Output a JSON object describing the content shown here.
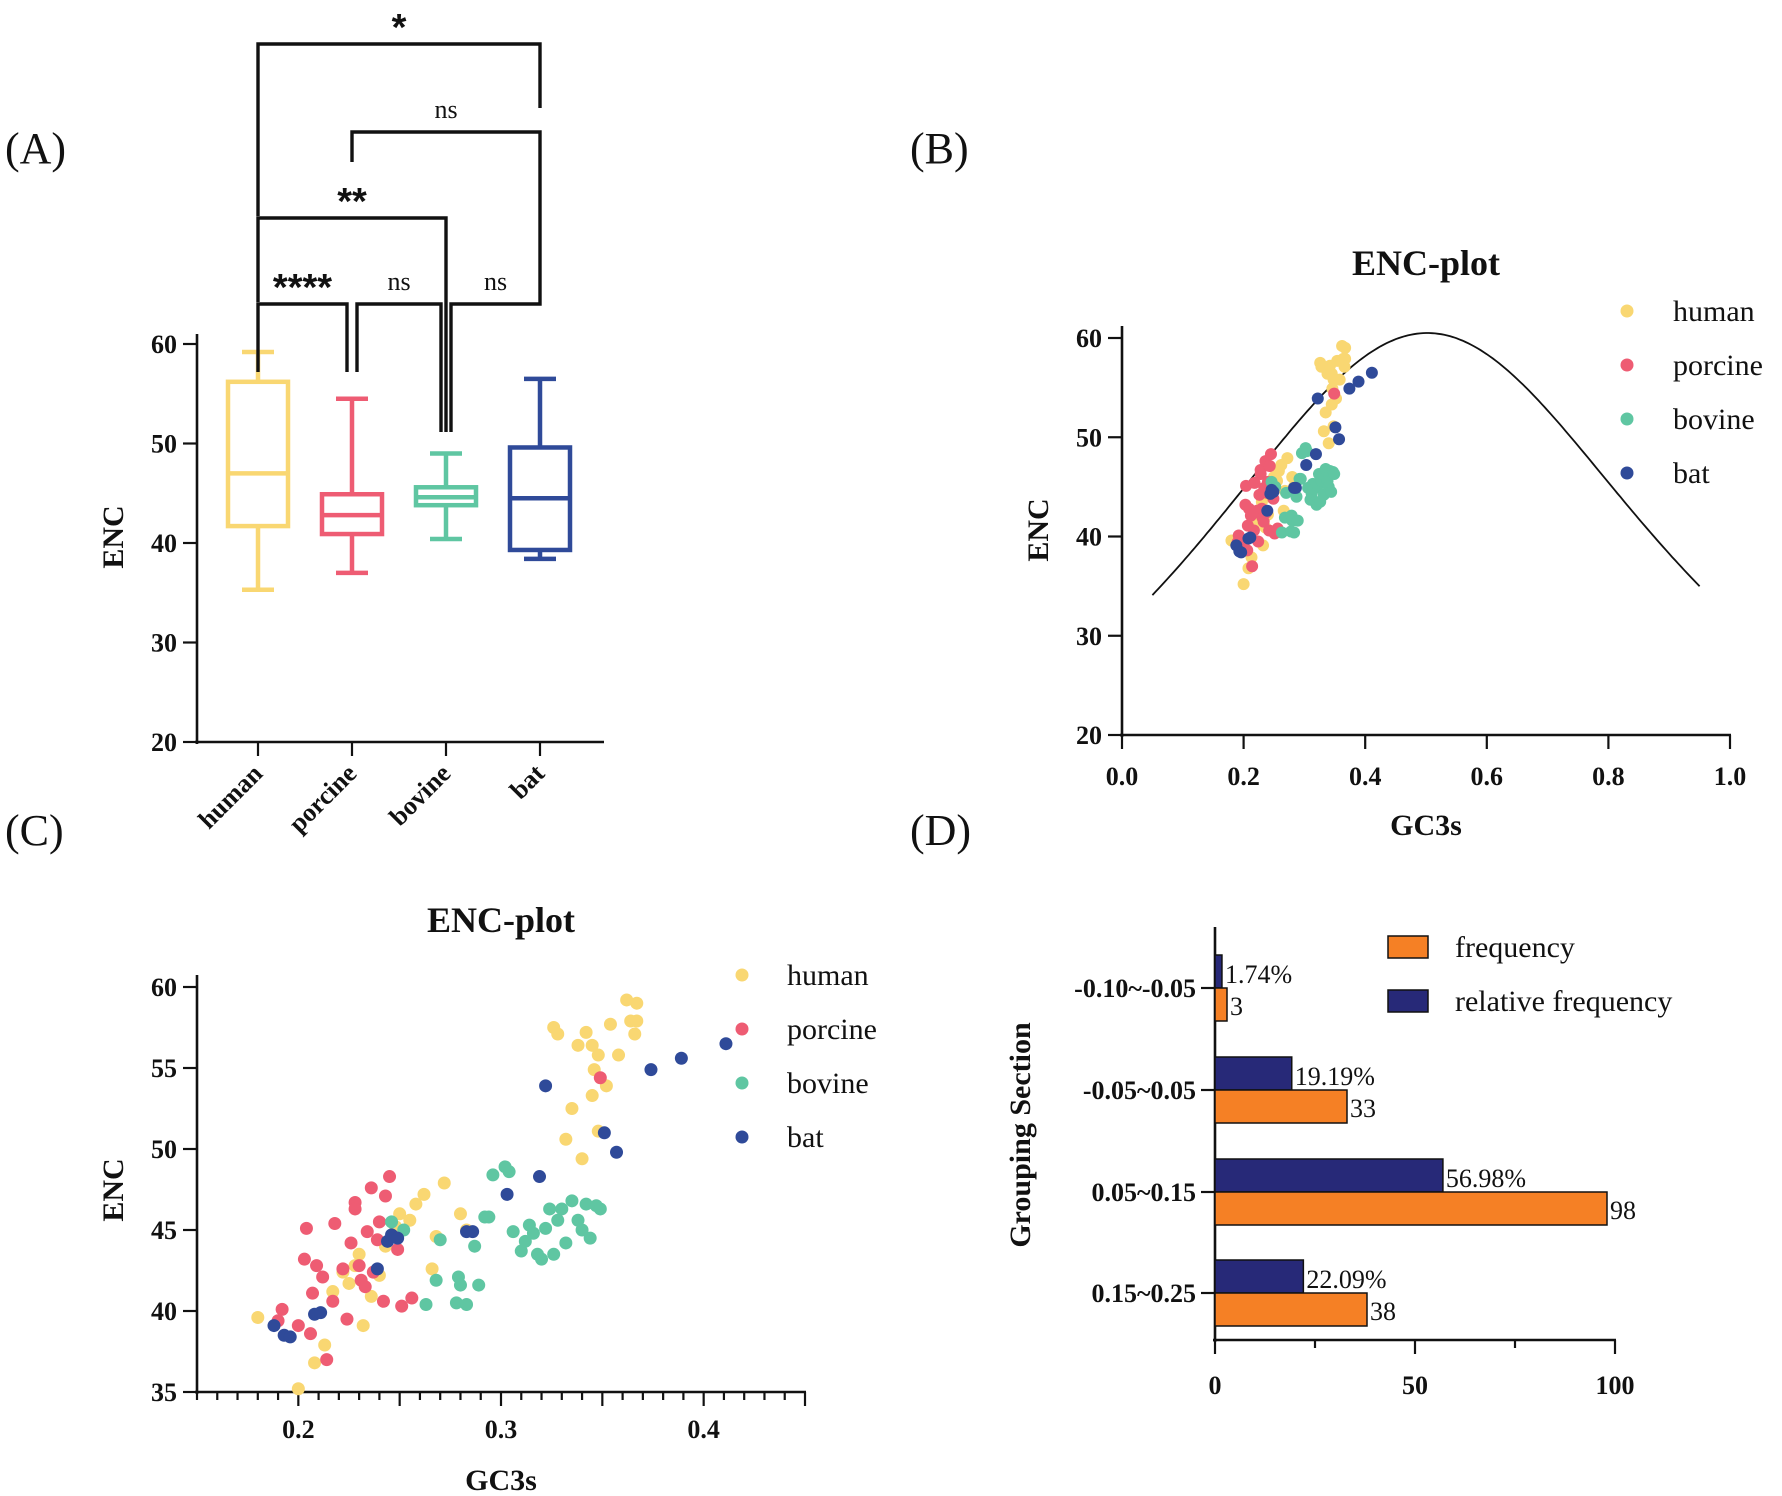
{
  "panels": {
    "A": "(A)",
    "B": "(B)",
    "C": "(C)",
    "D": "(D)"
  },
  "colors": {
    "human": "#F9D772",
    "porcine": "#EE5C73",
    "bovine": "#5FC6A2",
    "bat": "#2F4A99",
    "frequency": "#F58025",
    "relative_frequency": "#272978"
  },
  "chart_data": [
    {
      "id": "A",
      "type": "box",
      "title": "",
      "ylabel": "ENC",
      "ylim": [
        20,
        60
      ],
      "yticks": [
        "20",
        "30",
        "40",
        "50",
        "60"
      ],
      "categories": [
        "human",
        "porcine",
        "bovine",
        "bat"
      ],
      "boxes": [
        {
          "name": "human",
          "min": 35.3,
          "q1": 41.7,
          "median": 47.0,
          "q3": 56.2,
          "max": 59.2
        },
        {
          "name": "porcine",
          "min": 37.0,
          "q1": 40.9,
          "median": 42.8,
          "q3": 44.9,
          "max": 54.5
        },
        {
          "name": "bovine",
          "min": 40.4,
          "q1": 43.8,
          "median": 44.6,
          "q3": 45.6,
          "max": 49.0
        },
        {
          "name": "bat",
          "min": 38.4,
          "q1": 39.3,
          "median": 44.5,
          "q3": 49.6,
          "max": 56.5
        }
      ],
      "significance": [
        {
          "a": 0,
          "b": 1,
          "label": "****"
        },
        {
          "a": 1,
          "b": 2,
          "label": "ns"
        },
        {
          "a": 2,
          "b": 3,
          "label": "ns"
        },
        {
          "a": 0,
          "b": 2,
          "label": "**"
        },
        {
          "a": 1,
          "b": 3,
          "label": "ns"
        },
        {
          "a": 0,
          "b": 3,
          "label": "*"
        }
      ]
    },
    {
      "id": "B",
      "type": "scatter",
      "title": "ENC-plot",
      "xlabel": "GC3s",
      "ylabel": "ENC",
      "xlim": [
        0.0,
        1.0
      ],
      "ylim": [
        20,
        60
      ],
      "xticks": [
        "0.0",
        "0.2",
        "0.4",
        "0.6",
        "0.8",
        "1.0"
      ],
      "yticks": [
        "20",
        "30",
        "40",
        "50",
        "60"
      ],
      "expected_curve": "ENC = 2 + s + 29/(s^2 + (1-s)^2)",
      "legend": [
        "human",
        "porcine",
        "bovine",
        "bat"
      ]
    },
    {
      "id": "C",
      "type": "scatter",
      "title": "ENC-plot",
      "xlabel": "GC3s",
      "ylabel": "ENC",
      "xlim": [
        0.15,
        0.45
      ],
      "ylim": [
        35,
        60
      ],
      "xticks": [
        "0.2",
        "0.3",
        "0.4"
      ],
      "yticks": [
        "35",
        "40",
        "45",
        "50",
        "55",
        "60"
      ],
      "legend": [
        "human",
        "porcine",
        "bovine",
        "bat"
      ],
      "series": [
        {
          "name": "human",
          "points": [
            [
              0.18,
              39.6
            ],
            [
              0.2,
              35.2
            ],
            [
              0.208,
              36.8
            ],
            [
              0.213,
              37.9
            ],
            [
              0.217,
              41.2
            ],
            [
              0.222,
              42.4
            ],
            [
              0.225,
              41.7
            ],
            [
              0.228,
              42.8
            ],
            [
              0.23,
              43.5
            ],
            [
              0.232,
              39.1
            ],
            [
              0.236,
              40.9
            ],
            [
              0.24,
              42.2
            ],
            [
              0.243,
              44.0
            ],
            [
              0.248,
              45.2
            ],
            [
              0.25,
              46.0
            ],
            [
              0.255,
              45.6
            ],
            [
              0.258,
              46.6
            ],
            [
              0.262,
              47.2
            ],
            [
              0.266,
              42.6
            ],
            [
              0.268,
              44.6
            ],
            [
              0.272,
              47.9
            ],
            [
              0.28,
              46.0
            ],
            [
              0.283,
              45.0
            ],
            [
              0.326,
              57.5
            ],
            [
              0.328,
              57.1
            ],
            [
              0.332,
              50.6
            ],
            [
              0.335,
              52.5
            ],
            [
              0.338,
              56.4
            ],
            [
              0.34,
              49.4
            ],
            [
              0.342,
              57.2
            ],
            [
              0.345,
              56.4
            ],
            [
              0.345,
              53.3
            ],
            [
              0.346,
              54.9
            ],
            [
              0.348,
              55.8
            ],
            [
              0.348,
              51.1
            ],
            [
              0.352,
              53.9
            ],
            [
              0.354,
              57.7
            ],
            [
              0.358,
              55.8
            ],
            [
              0.362,
              59.2
            ],
            [
              0.364,
              57.9
            ],
            [
              0.366,
              57.1
            ],
            [
              0.367,
              57.9
            ],
            [
              0.367,
              59.0
            ]
          ]
        },
        {
          "name": "porcine",
          "points": [
            [
              0.19,
              39.4
            ],
            [
              0.192,
              40.1
            ],
            [
              0.2,
              39.1
            ],
            [
              0.203,
              43.2
            ],
            [
              0.204,
              45.1
            ],
            [
              0.206,
              38.6
            ],
            [
              0.207,
              41.1
            ],
            [
              0.209,
              42.8
            ],
            [
              0.212,
              42.1
            ],
            [
              0.214,
              37.0
            ],
            [
              0.217,
              40.6
            ],
            [
              0.218,
              45.4
            ],
            [
              0.222,
              42.6
            ],
            [
              0.224,
              39.5
            ],
            [
              0.226,
              44.2
            ],
            [
              0.228,
              46.7
            ],
            [
              0.228,
              46.3
            ],
            [
              0.23,
              42.8
            ],
            [
              0.231,
              41.9
            ],
            [
              0.233,
              41.5
            ],
            [
              0.234,
              44.9
            ],
            [
              0.236,
              47.6
            ],
            [
              0.237,
              42.4
            ],
            [
              0.239,
              44.4
            ],
            [
              0.24,
              45.5
            ],
            [
              0.242,
              40.6
            ],
            [
              0.243,
              47.1
            ],
            [
              0.245,
              48.3
            ],
            [
              0.247,
              44.6
            ],
            [
              0.249,
              43.8
            ],
            [
              0.251,
              40.3
            ],
            [
              0.256,
              40.8
            ],
            [
              0.349,
              54.4
            ]
          ]
        },
        {
          "name": "bovine",
          "points": [
            [
              0.246,
              45.5
            ],
            [
              0.252,
              45.0
            ],
            [
              0.263,
              40.4
            ],
            [
              0.268,
              41.9
            ],
            [
              0.27,
              44.4
            ],
            [
              0.278,
              40.5
            ],
            [
              0.279,
              42.1
            ],
            [
              0.28,
              41.6
            ],
            [
              0.283,
              40.4
            ],
            [
              0.287,
              44.0
            ],
            [
              0.289,
              41.6
            ],
            [
              0.292,
              45.8
            ],
            [
              0.294,
              45.8
            ],
            [
              0.296,
              48.4
            ],
            [
              0.302,
              48.9
            ],
            [
              0.304,
              48.6
            ],
            [
              0.306,
              44.9
            ],
            [
              0.31,
              43.7
            ],
            [
              0.312,
              44.3
            ],
            [
              0.314,
              45.3
            ],
            [
              0.316,
              44.8
            ],
            [
              0.318,
              43.5
            ],
            [
              0.32,
              43.2
            ],
            [
              0.322,
              45.1
            ],
            [
              0.324,
              46.3
            ],
            [
              0.326,
              43.5
            ],
            [
              0.328,
              45.6
            ],
            [
              0.33,
              46.3
            ],
            [
              0.332,
              44.2
            ],
            [
              0.335,
              46.8
            ],
            [
              0.338,
              45.6
            ],
            [
              0.34,
              45.0
            ],
            [
              0.342,
              46.6
            ],
            [
              0.344,
              44.5
            ],
            [
              0.347,
              46.5
            ],
            [
              0.349,
              46.3
            ]
          ]
        },
        {
          "name": "bat",
          "points": [
            [
              0.188,
              39.1
            ],
            [
              0.193,
              38.5
            ],
            [
              0.196,
              38.4
            ],
            [
              0.208,
              39.8
            ],
            [
              0.211,
              39.9
            ],
            [
              0.239,
              42.6
            ],
            [
              0.244,
              44.3
            ],
            [
              0.246,
              44.7
            ],
            [
              0.249,
              44.5
            ],
            [
              0.283,
              44.9
            ],
            [
              0.286,
              44.9
            ],
            [
              0.303,
              47.2
            ],
            [
              0.319,
              48.3
            ],
            [
              0.322,
              53.9
            ],
            [
              0.351,
              51.0
            ],
            [
              0.357,
              49.8
            ],
            [
              0.374,
              54.9
            ],
            [
              0.389,
              55.6
            ],
            [
              0.411,
              56.5
            ]
          ]
        }
      ]
    },
    {
      "id": "D",
      "type": "bar",
      "orientation": "horizontal",
      "title": "",
      "xlabel": "",
      "ylabel": "Grouping Section",
      "xlim": [
        0,
        100
      ],
      "xticks": [
        "0",
        "50",
        "100"
      ],
      "categories": [
        "-0.10~-0.05",
        "-0.05~0.05",
        "0.05~0.15",
        "0.15~0.25"
      ],
      "legend": [
        "frequency",
        "relative frequency"
      ],
      "series": [
        {
          "name": "frequency",
          "values": [
            3,
            33,
            98,
            38
          ],
          "labels": [
            "3",
            "33",
            "98",
            "38"
          ]
        },
        {
          "name": "relative frequency",
          "values": [
            1.74,
            19.19,
            56.98,
            22.09
          ],
          "labels": [
            "1.74%",
            "19.19%",
            "56.98%",
            "22.09%"
          ]
        }
      ]
    }
  ]
}
